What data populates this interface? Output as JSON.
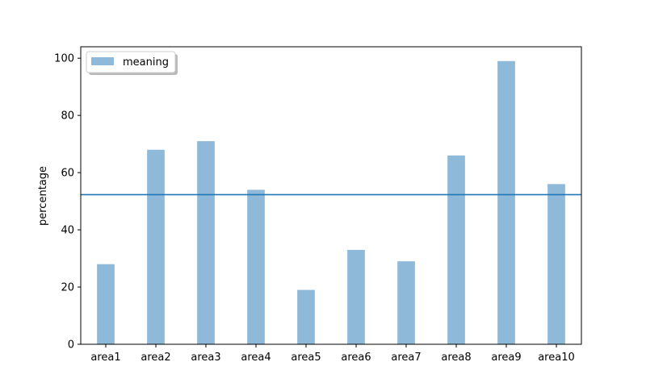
{
  "chart_data": {
    "type": "bar",
    "title": "",
    "xlabel": "",
    "ylabel": "percentage",
    "categories": [
      "area1",
      "area2",
      "area3",
      "area4",
      "area5",
      "area6",
      "area7",
      "area8",
      "area9",
      "area10"
    ],
    "series": [
      {
        "name": "meaning",
        "values": [
          28,
          68,
          71,
          54,
          19,
          33,
          29,
          66,
          99,
          56
        ],
        "color": "#8fb9d9"
      }
    ],
    "reference_line": {
      "value": 52.3,
      "color": "#1f77b4"
    },
    "ylim": [
      0,
      104
    ],
    "yticks": [
      0,
      20,
      40,
      60,
      80,
      100
    ],
    "grid": false,
    "legend_position": "top-left"
  }
}
